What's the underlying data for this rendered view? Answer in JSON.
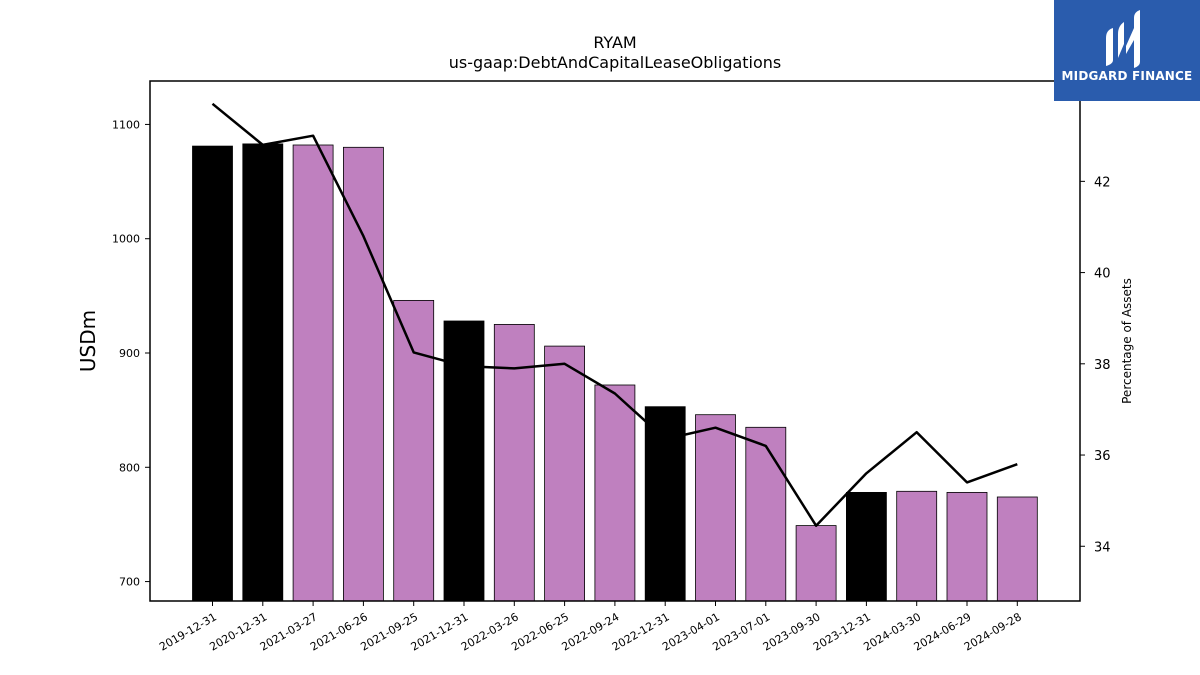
{
  "brand": {
    "name": "MIDGARD FINANCE",
    "background_color": "#2a5cad"
  },
  "chart_data": {
    "type": "bar",
    "title": "RYAM",
    "subtitle": "us-gaap:DebtAndCapitalLeaseObligations",
    "ylabel": "USDm",
    "ylabel_right": "Percentage of Assets",
    "ylim": [
      683,
      1138
    ],
    "ylim_right": [
      32.8,
      44.2
    ],
    "yticks": [
      "700",
      "800",
      "900",
      "1000",
      "1100"
    ],
    "yticks_right": [
      "34",
      "36",
      "38",
      "40",
      "42"
    ],
    "grid": false,
    "categories": [
      "2019-12-31",
      "2020-12-31",
      "2021-03-27",
      "2021-06-26",
      "2021-09-25",
      "2021-12-31",
      "2022-03-26",
      "2022-06-25",
      "2022-09-24",
      "2022-12-31",
      "2023-04-01",
      "2023-07-01",
      "2023-09-30",
      "2023-12-31",
      "2024-03-30",
      "2024-06-29",
      "2024-09-28"
    ],
    "series": [
      {
        "type": "bar",
        "axis": "left",
        "values": [
          1081,
          1083,
          1082,
          1080,
          946,
          928,
          925,
          906,
          872,
          853,
          846,
          835,
          749,
          778,
          779,
          778,
          774
        ],
        "annual_color": "#000000",
        "quarterly_color": "#bf80bf",
        "is_annual": [
          true,
          true,
          false,
          false,
          false,
          true,
          false,
          false,
          false,
          true,
          false,
          false,
          false,
          true,
          false,
          false,
          false
        ]
      },
      {
        "type": "line",
        "axis": "right",
        "color": "#000000",
        "values": [
          43.7,
          42.8,
          43.0,
          40.8,
          38.25,
          37.95,
          37.9,
          38.0,
          37.35,
          36.35,
          36.6,
          36.2,
          34.45,
          35.6,
          36.5,
          35.4,
          35.8
        ]
      }
    ]
  }
}
